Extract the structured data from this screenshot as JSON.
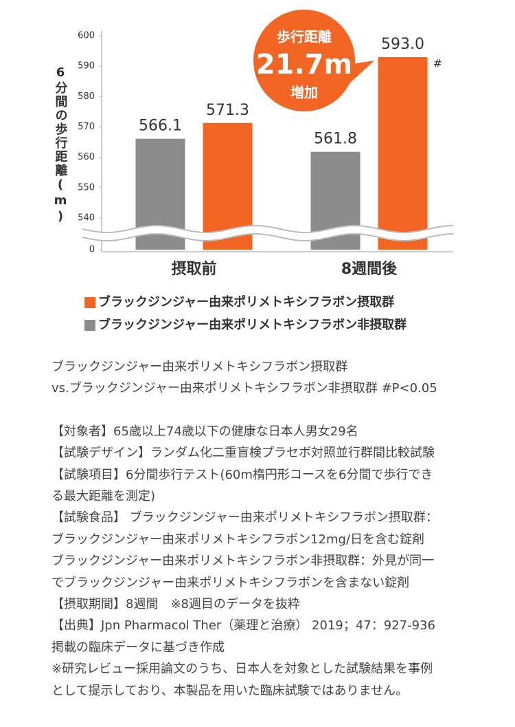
{
  "chart_data": {
    "type": "bar",
    "y_label": "6分間の歩行距離(m)",
    "categories": [
      "摂取前",
      "8週間後"
    ],
    "series": [
      {
        "name": "ブラックジンジャー由来ポリメトキシフラボン非摂取群",
        "color": "#8c8c8c",
        "values": [
          566.1,
          561.8
        ],
        "value_labels": [
          "566.1",
          "561.8"
        ]
      },
      {
        "name": "ブラックジンジャー由来ポリメトキシフラボン摂取群",
        "color": "#f26522",
        "values": [
          571.3,
          593.0
        ],
        "value_labels": [
          "571.3",
          "593.0"
        ],
        "marks": [
          null,
          "#"
        ]
      }
    ],
    "legend_order": [
      1,
      0
    ],
    "ylim": [
      0,
      600
    ],
    "yticks": [
      0,
      540,
      550,
      560,
      570,
      580,
      590,
      600
    ],
    "axis_break": {
      "from": 0,
      "to": 540
    },
    "annotation": [
      "歩行距離",
      "21.7m",
      "増加"
    ],
    "annotation_color": "#f26522"
  },
  "notes": [
    "ブラックジンジャー由来ポリメトキシフラボン摂取群",
    "vs.ブラックジンジャー由来ポリメトキシフラボン非摂取群 #P<0.05",
    "【対象者】65歳以上74歳以下の健康な日本人男女29名",
    "【試験デザイン】ランダム化二重盲検プラセボ対照並行群間比較試験",
    "【試験項目】6分間歩行テスト(60m楕円形コースを6分間で歩行でき",
    "る最大距離を測定)",
    "【試験食品】 ブラックジンジャー由来ポリメトキシフラボン摂取群：",
    "ブラックジンジャー由来ポリメトキシフラボン12mg/日を含む錠剤",
    "ブラックジンジャー由来ポリメトキシフラボン非摂取群：外見が同一",
    "でブラックジンジャー由来ポリメトキシフラボンを含まない錠剤",
    "【摂取期間】8週間　※8週目のデータを抜粋",
    "【出典】Jpn Pharmacol Ther（薬理と治療） 2019；47：927-936",
    "掲載の臨床データに基づき作成",
    "※研究レビュー採用論文のうち、日本人を対象とした試験結果を事例",
    "として提示しており、本製品を用いた臨床試験ではありません。"
  ]
}
